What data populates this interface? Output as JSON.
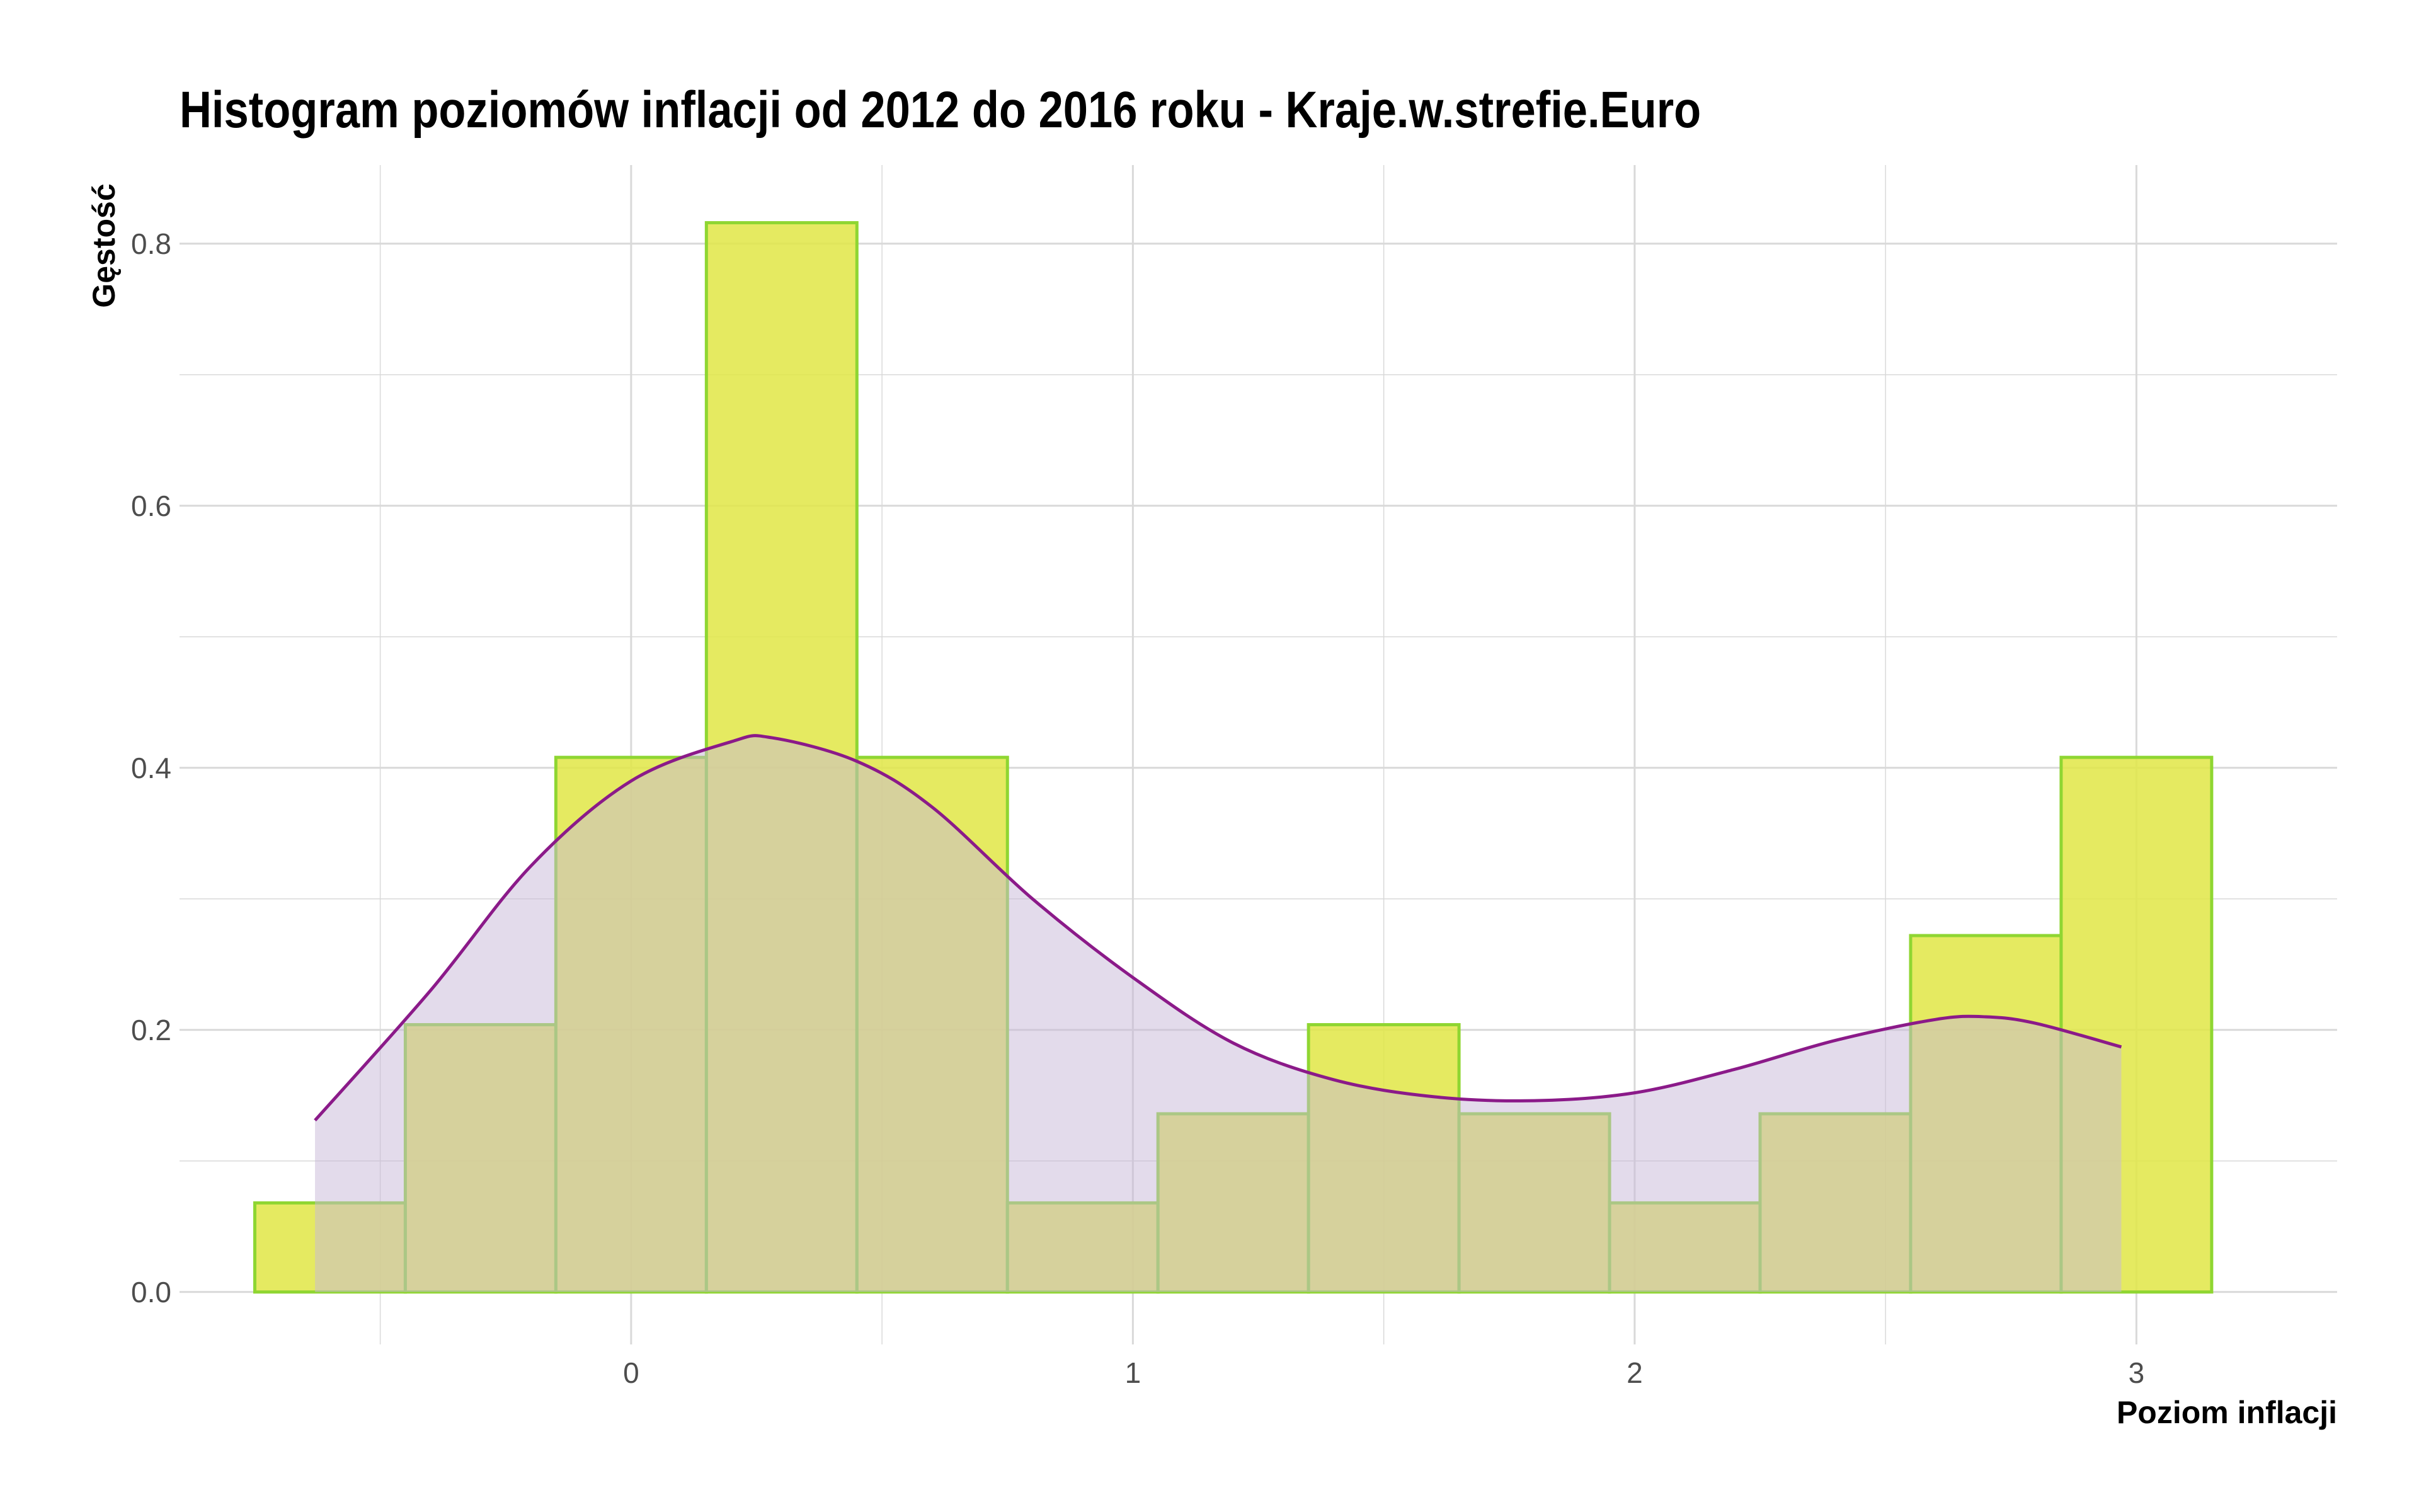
{
  "chart_data": {
    "type": "bar",
    "title": "Histogram poziomów inflacji od 2012 do 2016 roku  -  Kraje.w.strefie.Euro",
    "xlabel": "Poziom inflacji",
    "ylabel": "Gęstość",
    "xlim": [
      -0.9,
      3.4
    ],
    "ylim": [
      -0.04,
      0.86
    ],
    "x_ticks": [
      0,
      1,
      2,
      3
    ],
    "y_ticks": [
      0.0,
      0.2,
      0.4,
      0.6,
      0.8
    ],
    "grid": true,
    "bin_width": 0.3,
    "bins": [
      {
        "x0": -0.75,
        "x1": -0.45,
        "density": 0.068
      },
      {
        "x0": -0.45,
        "x1": -0.15,
        "density": 0.204
      },
      {
        "x0": -0.15,
        "x1": 0.15,
        "density": 0.408
      },
      {
        "x0": 0.15,
        "x1": 0.45,
        "density": 0.816
      },
      {
        "x0": 0.45,
        "x1": 0.75,
        "density": 0.408
      },
      {
        "x0": 0.75,
        "x1": 1.05,
        "density": 0.068
      },
      {
        "x0": 1.05,
        "x1": 1.35,
        "density": 0.136
      },
      {
        "x0": 1.35,
        "x1": 1.65,
        "density": 0.204
      },
      {
        "x0": 1.65,
        "x1": 1.95,
        "density": 0.136
      },
      {
        "x0": 1.95,
        "x1": 2.25,
        "density": 0.068
      },
      {
        "x0": 2.25,
        "x1": 2.55,
        "density": 0.136
      },
      {
        "x0": 2.55,
        "x1": 2.85,
        "density": 0.272
      },
      {
        "x0": 2.85,
        "x1": 3.15,
        "density": 0.408
      }
    ],
    "density_curve": {
      "x": [
        -0.63,
        -0.4,
        -0.2,
        0.0,
        0.2,
        0.28,
        0.45,
        0.6,
        0.8,
        1.0,
        1.2,
        1.4,
        1.6,
        1.8,
        2.0,
        2.2,
        2.4,
        2.6,
        2.7,
        2.8,
        2.97
      ],
      "y": [
        0.131,
        0.23,
        0.325,
        0.39,
        0.42,
        0.423,
        0.405,
        0.37,
        0.3,
        0.24,
        0.19,
        0.162,
        0.149,
        0.146,
        0.152,
        0.17,
        0.192,
        0.208,
        0.21,
        0.205,
        0.187
      ]
    },
    "colors": {
      "bar_fill": "#e0e645",
      "bar_stroke": "#8fd632",
      "curve_line": "#8b1a89",
      "curve_fill": "#c8b8d8",
      "grid": "#d9d9d9"
    }
  }
}
